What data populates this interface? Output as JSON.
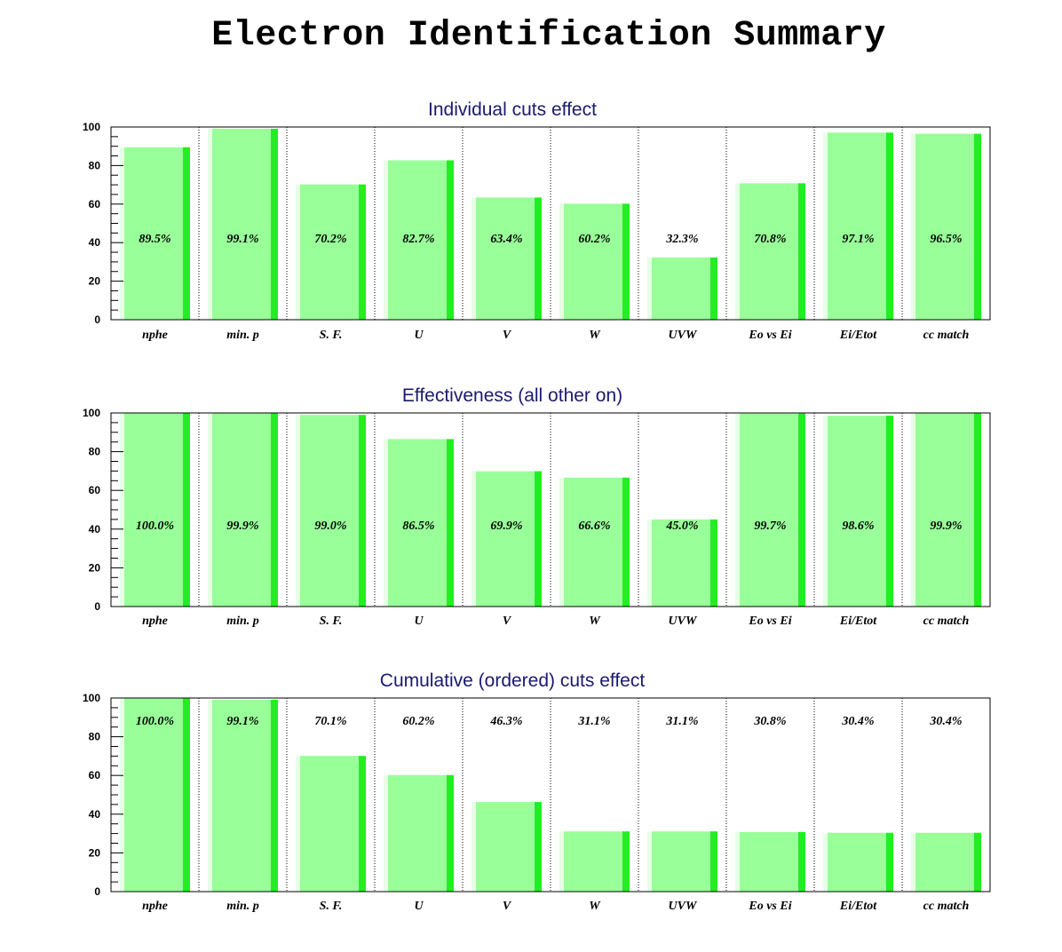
{
  "title": "Electron Identification Summary",
  "colors": {
    "bar_fill": "#99ff99",
    "bar_edge": "#22ee22",
    "bar_shadow": "#e6ffe6",
    "axis": "#000000",
    "title": "#1a1a6e"
  },
  "chart_data": [
    {
      "type": "bar",
      "title": "Individual cuts effect",
      "categories": [
        "nphe",
        "min. p",
        "S. F.",
        "U",
        "V",
        "W",
        "UVW",
        "Eo vs Ei",
        "Ei/Etot",
        "cc match"
      ],
      "values": [
        89.5,
        99.1,
        70.2,
        82.7,
        63.4,
        60.2,
        32.3,
        70.8,
        97.1,
        96.5
      ],
      "value_labels": [
        "89.5%",
        "99.1%",
        "70.2%",
        "82.7%",
        "63.4%",
        "60.2%",
        "32.3%",
        "70.8%",
        "97.1%",
        "96.5%"
      ],
      "yticks": [
        "0",
        "20",
        "40",
        "60",
        "80",
        "100"
      ],
      "ylim": [
        0,
        100
      ],
      "label_placement": "middle"
    },
    {
      "type": "bar",
      "title": "Effectiveness (all other on)",
      "categories": [
        "nphe",
        "min. p",
        "S. F.",
        "U",
        "V",
        "W",
        "UVW",
        "Eo vs Ei",
        "Ei/Etot",
        "cc match"
      ],
      "values": [
        100.0,
        99.9,
        99.0,
        86.5,
        69.9,
        66.6,
        45.0,
        99.7,
        98.6,
        99.9
      ],
      "value_labels": [
        "100.0%",
        "99.9%",
        "99.0%",
        "86.5%",
        "69.9%",
        "66.6%",
        "45.0%",
        "99.7%",
        "98.6%",
        "99.9%"
      ],
      "yticks": [
        "0",
        "20",
        "40",
        "60",
        "80",
        "100"
      ],
      "ylim": [
        0,
        100
      ],
      "label_placement": "middle"
    },
    {
      "type": "bar",
      "title": "Cumulative (ordered) cuts effect",
      "categories": [
        "nphe",
        "min. p",
        "S. F.",
        "U",
        "V",
        "W",
        "UVW",
        "Eo vs Ei",
        "Ei/Etot",
        "cc match"
      ],
      "values": [
        100.0,
        99.1,
        70.1,
        60.2,
        46.3,
        31.1,
        31.1,
        30.8,
        30.4,
        30.4
      ],
      "value_labels": [
        "100.0%",
        "99.1%",
        "70.1%",
        "60.2%",
        "46.3%",
        "31.1%",
        "31.1%",
        "30.8%",
        "30.4%",
        "30.4%"
      ],
      "yticks": [
        "0",
        "20",
        "40",
        "60",
        "80",
        "100"
      ],
      "ylim": [
        0,
        100
      ],
      "label_placement": "top"
    }
  ]
}
